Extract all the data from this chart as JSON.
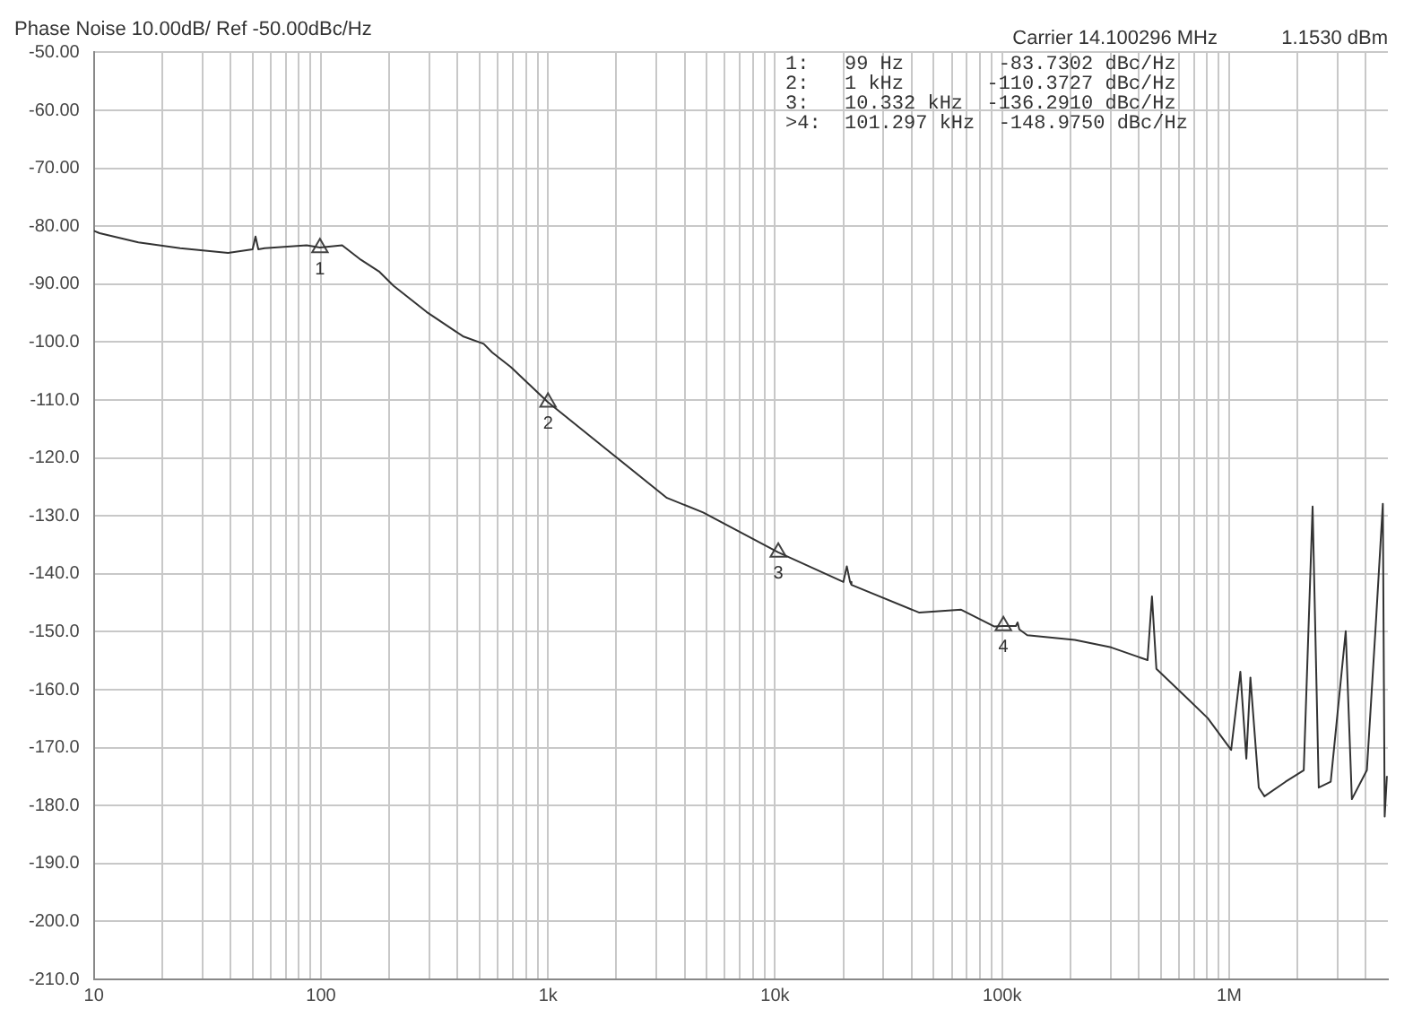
{
  "chart_data": {
    "type": "line",
    "title": "Phase Noise 10.00dB/ Ref -50.00dBc/Hz",
    "log": "x",
    "grid": true,
    "legend": false,
    "marker": "none",
    "line_style": "solid",
    "xlim": [
      10,
      5000000
    ],
    "xticks": [
      {
        "value": 10,
        "label": "10"
      },
      {
        "value": 20,
        "label": null
      },
      {
        "value": 30,
        "label": null
      },
      {
        "value": 40,
        "label": null
      },
      {
        "value": 50,
        "label": null
      },
      {
        "value": 60,
        "label": null
      },
      {
        "value": 70,
        "label": null
      },
      {
        "value": 80,
        "label": null
      },
      {
        "value": 90,
        "label": null
      },
      {
        "value": 100,
        "label": "100"
      },
      {
        "value": 200,
        "label": null
      },
      {
        "value": 300,
        "label": null
      },
      {
        "value": 400,
        "label": null
      },
      {
        "value": 500,
        "label": null
      },
      {
        "value": 600,
        "label": null
      },
      {
        "value": 700,
        "label": null
      },
      {
        "value": 800,
        "label": null
      },
      {
        "value": 900,
        "label": null
      },
      {
        "value": 1000,
        "label": "1k"
      },
      {
        "value": 2000,
        "label": null
      },
      {
        "value": 3000,
        "label": null
      },
      {
        "value": 4000,
        "label": null
      },
      {
        "value": 5000,
        "label": null
      },
      {
        "value": 6000,
        "label": null
      },
      {
        "value": 7000,
        "label": null
      },
      {
        "value": 8000,
        "label": null
      },
      {
        "value": 9000,
        "label": null
      },
      {
        "value": 10000,
        "label": "10k"
      },
      {
        "value": 20000,
        "label": null
      },
      {
        "value": 30000,
        "label": null
      },
      {
        "value": 40000,
        "label": null
      },
      {
        "value": 50000,
        "label": null
      },
      {
        "value": 60000,
        "label": null
      },
      {
        "value": 70000,
        "label": null
      },
      {
        "value": 80000,
        "label": null
      },
      {
        "value": 90000,
        "label": null
      },
      {
        "value": 100000,
        "label": "100k"
      },
      {
        "value": 200000,
        "label": null
      },
      {
        "value": 300000,
        "label": null
      },
      {
        "value": 400000,
        "label": null
      },
      {
        "value": 500000,
        "label": null
      },
      {
        "value": 600000,
        "label": null
      },
      {
        "value": 700000,
        "label": null
      },
      {
        "value": 800000,
        "label": null
      },
      {
        "value": 900000,
        "label": null
      },
      {
        "value": 1000000,
        "label": "1M"
      },
      {
        "value": 2000000,
        "label": null
      },
      {
        "value": 3000000,
        "label": null
      },
      {
        "value": 4000000,
        "label": null
      }
    ],
    "ylim": [
      -210,
      -50
    ],
    "yticks": [
      {
        "value": -50,
        "label": "-50.00"
      },
      {
        "value": -60,
        "label": "-60.00"
      },
      {
        "value": -70,
        "label": "-70.00"
      },
      {
        "value": -80,
        "label": "-80.00"
      },
      {
        "value": -90,
        "label": "-90.00"
      },
      {
        "value": -100,
        "label": "-100.0"
      },
      {
        "value": -110,
        "label": "-110.0"
      },
      {
        "value": -120,
        "label": "-120.0"
      },
      {
        "value": -130,
        "label": "-130.0"
      },
      {
        "value": -140,
        "label": "-140.0"
      },
      {
        "value": -150,
        "label": "-150.0"
      },
      {
        "value": -160,
        "label": "-160.0"
      },
      {
        "value": -170,
        "label": "-170.0"
      },
      {
        "value": -180,
        "label": "-180.0"
      },
      {
        "value": -190,
        "label": "-190.0"
      },
      {
        "value": -200,
        "label": "-200.0"
      },
      {
        "value": -210,
        "label": "-210.0"
      }
    ],
    "series": [
      {
        "color": "#333333",
        "x": [
          10,
          10.6,
          15.7,
          24,
          39,
          50,
          51.5,
          53,
          56.5,
          86.5,
          99,
          124,
          150,
          180,
          209,
          292,
          422,
          521,
          568,
          686,
          1000,
          1930,
          3340,
          4820,
          10332,
          20000,
          20700,
          21400,
          21700,
          43200,
          66000,
          92500,
          101297,
          115000,
          117000,
          119000,
          129000,
          209000,
          302000,
          437000,
          457000,
          478000,
          630000,
          804000,
          1020000,
          1120000,
          1190000,
          1240000,
          1350000,
          1430000,
          1770000,
          2130000,
          2330000,
          2480000,
          2800000,
          3260000,
          3470000,
          4040000,
          4420000,
          4750000,
          4840000,
          4950000
        ],
        "values": [
          -80.8,
          -81.2,
          -82.8,
          -83.8,
          -84.6,
          -84,
          -81.8,
          -84,
          -83.8,
          -83.3,
          -83.7,
          -83.3,
          -85.8,
          -87.8,
          -90.3,
          -94.8,
          -99,
          -100.3,
          -101.8,
          -104.3,
          -110.4,
          -119.4,
          -126.9,
          -129.4,
          -136.3,
          -141.4,
          -138.7,
          -141.4,
          -141.9,
          -146.7,
          -146.2,
          -149.1,
          -149,
          -149,
          -148.4,
          -149.6,
          -150.6,
          -151.4,
          -152.7,
          -154.9,
          -143.9,
          -156.4,
          -160.9,
          -164.9,
          -170.4,
          -156.9,
          -171.9,
          -157.9,
          -176.9,
          -178.4,
          -175.9,
          -173.9,
          -128.4,
          -176.9,
          -175.9,
          -149.9,
          -178.9,
          -173.9,
          -148.9,
          -127.9,
          -181.9,
          -174.9
        ]
      },
      {
        "type": "scatter",
        "color": "#444444",
        "marker": "triangle",
        "x": [
          99,
          1000,
          10332,
          101297
        ],
        "values": [
          -83.7302,
          -110.3727,
          -136.291,
          -148.975
        ]
      }
    ],
    "annotations": [
      "Carrier 14.100296 MHz",
      "1.1530 dBm",
      "1:   99 Hz        -83.7302 dBc/Hz",
      "2:   1 kHz       -110.3727 dBc/Hz",
      "3:   10.332 kHz  -136.2910 dBc/Hz",
      ">4:  101.297 kHz  -148.9750 dBc/Hz",
      {
        "text": "1",
        "x": 99,
        "y": -83.7302
      },
      {
        "text": "2",
        "x": 1000,
        "y": -110.3727
      },
      {
        "text": "3",
        "x": 10332,
        "y": -136.291
      },
      {
        "text": "4",
        "x": 101297,
        "y": -148.975
      }
    ]
  }
}
